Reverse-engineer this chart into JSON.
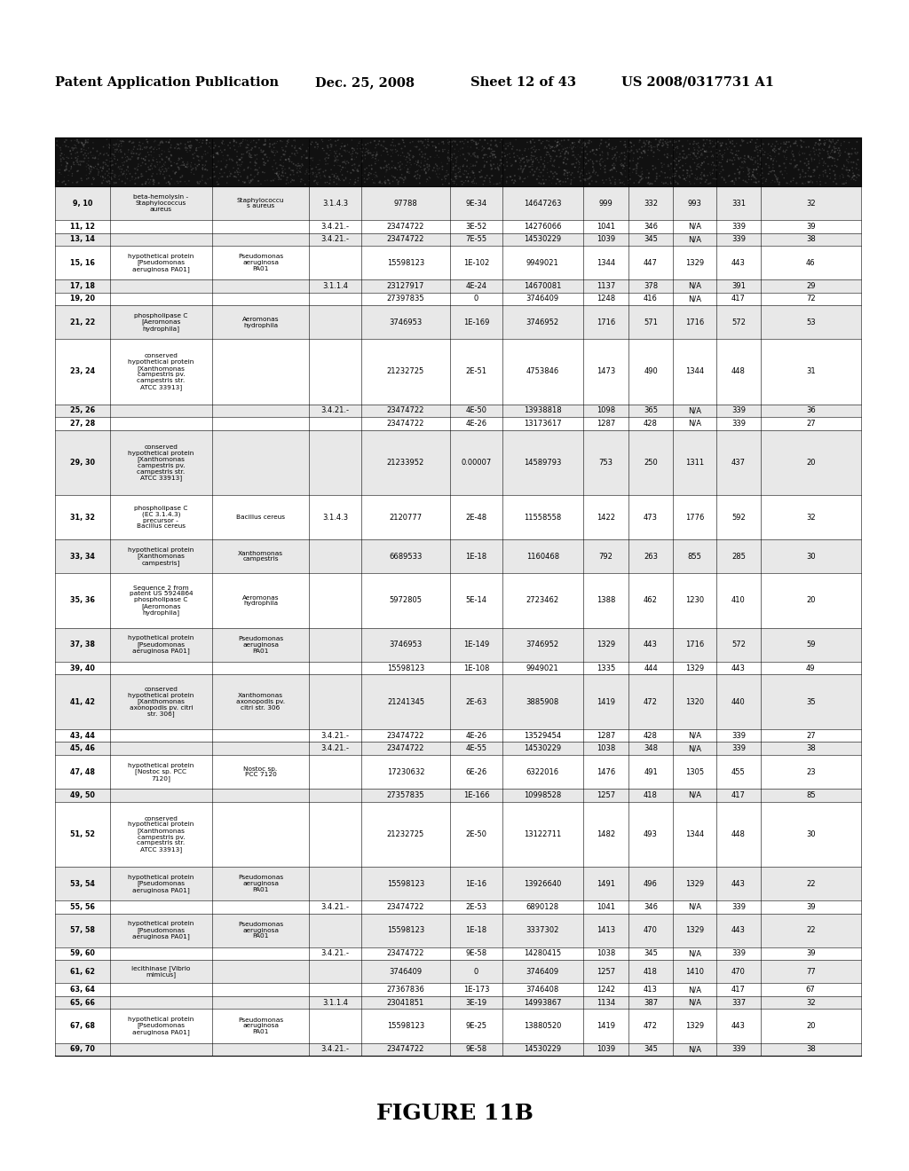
{
  "header_line1": "Patent Application Publication",
  "header_date": "Dec. 25, 2008",
  "header_sheet": "Sheet 12 of 43",
  "header_patent": "US 2008/0317731 A1",
  "figure_label": "FIGURE 11B",
  "rows": [
    [
      "9, 10",
      "beta-hemolysin -\nStaphylococcus\naureus",
      "Staphylococcu\ns aureus",
      "3.1.4.3",
      "97788",
      "9E-34",
      "14647263",
      "999",
      "332",
      "993",
      "331",
      "32"
    ],
    [
      "11, 12",
      "",
      "",
      "3.4.21.-",
      "23474722",
      "3E-52",
      "14276066",
      "1041",
      "346",
      "N/A",
      "339",
      "39"
    ],
    [
      "13, 14",
      "",
      "",
      "3.4.21.-",
      "23474722",
      "7E-55",
      "14530229",
      "1039",
      "345",
      "N/A",
      "339",
      "38"
    ],
    [
      "15, 16",
      "hypothetical protein\n[Pseudomonas\naeruginosa PA01]",
      "Pseudomonas\naeruginosa\nPA01",
      "",
      "15598123",
      "1E-102",
      "9949021",
      "1344",
      "447",
      "1329",
      "443",
      "46"
    ],
    [
      "17, 18",
      "",
      "",
      "3.1.1.4",
      "23127917",
      "4E-24",
      "14670081",
      "1137",
      "378",
      "N/A",
      "391",
      "29"
    ],
    [
      "19, 20",
      "",
      "",
      "",
      "27397835",
      "0",
      "3746409",
      "1248",
      "416",
      "N/A",
      "417",
      "72"
    ],
    [
      "21, 22",
      "phospholipase C\n[Aeromonas\nhydrophila]",
      "Aeromonas\nhydrophila",
      "",
      "3746953",
      "1E-169",
      "3746952",
      "1716",
      "571",
      "1716",
      "572",
      "53"
    ],
    [
      "23, 24",
      "conserved\nhypothetical protein\n[Xanthomonas\ncampestris pv.\ncampestris str.\nATCC 33913]",
      "",
      "",
      "21232725",
      "2E-51",
      "4753846",
      "1473",
      "490",
      "1344",
      "448",
      "31"
    ],
    [
      "25, 26",
      "",
      "",
      "3.4.21.-",
      "23474722",
      "4E-50",
      "13938818",
      "1098",
      "365",
      "N/A",
      "339",
      "36"
    ],
    [
      "27, 28",
      "",
      "",
      "",
      "23474722",
      "4E-26",
      "13173617",
      "1287",
      "428",
      "N/A",
      "339",
      "27"
    ],
    [
      "29, 30",
      "conserved\nhypothetical protein\n[Xanthomonas\ncampestris pv.\ncampestris str.\nATCC 33913]",
      "",
      "",
      "21233952",
      "0.00007",
      "14589793",
      "753",
      "250",
      "1311",
      "437",
      "20"
    ],
    [
      "31, 32",
      "phospholipase C\n(EC 3.1.4.3)\nprecursor -\nBacillus cereus",
      "Bacillus cereus",
      "3.1.4.3",
      "2120777",
      "2E-48",
      "11558558",
      "1422",
      "473",
      "1776",
      "592",
      "32"
    ],
    [
      "33, 34",
      "hypothetical protein\n[Xanthomonas\ncampestris]",
      "Xanthomonas\ncampestris",
      "",
      "6689533",
      "1E-18",
      "1160468",
      "792",
      "263",
      "855",
      "285",
      "30"
    ],
    [
      "35, 36",
      "Sequence 2 from\npatent US 5924864\nphospholipase C\n[Aeromonas\nhydrophila]",
      "Aeromonas\nhydrophila",
      "",
      "5972805",
      "5E-14",
      "2723462",
      "1388",
      "462",
      "1230",
      "410",
      "20"
    ],
    [
      "37, 38",
      "hypothetical protein\n[Pseudomonas\naeruginosa PA01]",
      "Pseudomonas\naeruginosa\nPA01",
      "",
      "3746953",
      "1E-149",
      "3746952",
      "1329",
      "443",
      "1716",
      "572",
      "59"
    ],
    [
      "39, 40",
      "",
      "",
      "",
      "15598123",
      "1E-108",
      "9949021",
      "1335",
      "444",
      "1329",
      "443",
      "49"
    ],
    [
      "41, 42",
      "conserved\nhypothetical protein\n[Xanthomonas\naxonopodis pv. citri\nstr. 306]",
      "Xanthomonas\naxonopodis pv.\ncitri str. 306",
      "",
      "21241345",
      "2E-63",
      "3885908",
      "1419",
      "472",
      "1320",
      "440",
      "35"
    ],
    [
      "43, 44",
      "",
      "",
      "3.4.21.-",
      "23474722",
      "4E-26",
      "13529454",
      "1287",
      "428",
      "N/A",
      "339",
      "27"
    ],
    [
      "45, 46",
      "",
      "",
      "3.4.21.-",
      "23474722",
      "4E-55",
      "14530229",
      "1038",
      "348",
      "N/A",
      "339",
      "38"
    ],
    [
      "47, 48",
      "hypothetical protein\n[Nostoc sp. PCC\n7120]",
      "Nostoc sp.\nPCC 7120",
      "",
      "17230632",
      "6E-26",
      "6322016",
      "1476",
      "491",
      "1305",
      "455",
      "23"
    ],
    [
      "49, 50",
      "",
      "",
      "",
      "27357835",
      "1E-166",
      "10998528",
      "1257",
      "418",
      "N/A",
      "417",
      "85"
    ],
    [
      "51, 52",
      "conserved\nhypothetical protein\n[Xanthomonas\ncampestris pv.\ncampestris str.\nATCC 33913]",
      "",
      "",
      "21232725",
      "2E-50",
      "13122711",
      "1482",
      "493",
      "1344",
      "448",
      "30"
    ],
    [
      "53, 54",
      "hypothetical protein\n[Pseudomonas\naeruginosa PA01]",
      "Pseudomonas\naeruginosa\nPA01",
      "",
      "15598123",
      "1E-16",
      "13926640",
      "1491",
      "496",
      "1329",
      "443",
      "22"
    ],
    [
      "55, 56",
      "",
      "",
      "3.4.21.-",
      "23474722",
      "2E-53",
      "6890128",
      "1041",
      "346",
      "N/A",
      "339",
      "39"
    ],
    [
      "57, 58",
      "hypothetical protein\n[Pseudomonas\naeruginosa PA01]",
      "Pseudomonas\naeruginosa\nPA01",
      "",
      "15598123",
      "1E-18",
      "3337302",
      "1413",
      "470",
      "1329",
      "443",
      "22"
    ],
    [
      "59, 60",
      "",
      "",
      "3.4.21.-",
      "23474722",
      "9E-58",
      "14280415",
      "1038",
      "345",
      "N/A",
      "339",
      "39"
    ],
    [
      "61, 62",
      "lecithinase [Vibrio\nmimicus]",
      "",
      "",
      "3746409",
      "0",
      "3746409",
      "1257",
      "418",
      "1410",
      "470",
      "77"
    ],
    [
      "63, 64",
      "",
      "",
      "",
      "27367836",
      "1E-173",
      "3746408",
      "1242",
      "413",
      "N/A",
      "417",
      "67"
    ],
    [
      "65, 66",
      "",
      "",
      "3.1.1.4",
      "23041851",
      "3E-19",
      "14993867",
      "1134",
      "387",
      "N/A",
      "337",
      "32"
    ],
    [
      "67, 68",
      "hypothetical protein\n[Pseudomonas\naeruginosa PA01]",
      "Pseudomonas\naeruginosa\nPA01",
      "",
      "15598123",
      "9E-25",
      "13880520",
      "1419",
      "472",
      "1329",
      "443",
      "20"
    ],
    [
      "69, 70",
      "",
      "",
      "3.4.21.-",
      "23474722",
      "9E-58",
      "14530229",
      "1039",
      "345",
      "N/A",
      "339",
      "38"
    ]
  ]
}
